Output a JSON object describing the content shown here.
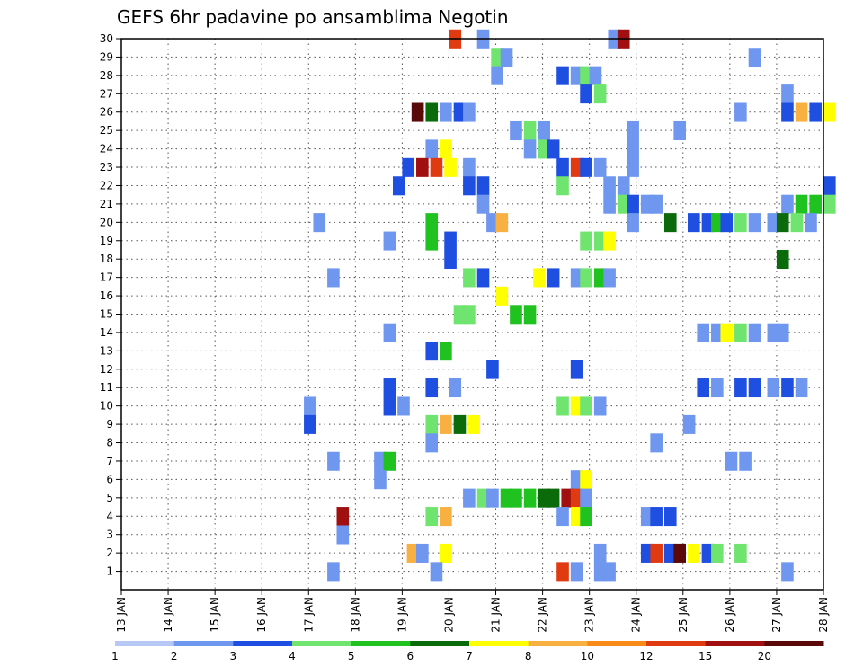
{
  "chart_data": {
    "type": "heatmap",
    "title": "GEFS 6hr padavine po ansamblima Negotin",
    "x_ticks": [
      "13 JAN",
      "14 JAN",
      "15 JAN",
      "16 JAN",
      "17 JAN",
      "18 JAN",
      "19 JAN",
      "20 JAN",
      "21 JAN",
      "22 JAN",
      "23 JAN",
      "24 JAN",
      "25 JAN",
      "26 JAN",
      "27 JAN",
      "28 JAN"
    ],
    "y_ticks": [
      "1",
      "2",
      "3",
      "4",
      "5",
      "6",
      "7",
      "8",
      "9",
      "10",
      "11",
      "12",
      "13",
      "14",
      "15",
      "16",
      "17",
      "18",
      "19",
      "20",
      "21",
      "22",
      "23",
      "24",
      "25",
      "26",
      "27",
      "28",
      "29",
      "30"
    ],
    "xlim": [
      0,
      15.3
    ],
    "ylim": [
      0,
      30
    ],
    "grid": true,
    "colorbar": {
      "labels": [
        "1",
        "2",
        "3",
        "4",
        "5",
        "6",
        "7",
        "8",
        "10",
        "12",
        "15",
        "20"
      ],
      "colors": [
        "#b8c8f4",
        "#6f97ef",
        "#1f4fe0",
        "#6fe46f",
        "#20c220",
        "#0b6b0b",
        "#ffff00",
        "#f8b040",
        "#f88a18",
        "#e03a10",
        "#a01010",
        "#5a0808"
      ]
    },
    "cells": [
      [
        7.0,
        30,
        9
      ],
      [
        7.6,
        30,
        1
      ],
      [
        10.4,
        30,
        1
      ],
      [
        10.6,
        30,
        10
      ],
      [
        7.9,
        29,
        3
      ],
      [
        8.1,
        29,
        1
      ],
      [
        13.4,
        29,
        1
      ],
      [
        7.9,
        28,
        1
      ],
      [
        9.3,
        28,
        2
      ],
      [
        9.6,
        28,
        1
      ],
      [
        9.8,
        28,
        3
      ],
      [
        10.0,
        28,
        1
      ],
      [
        9.8,
        27,
        2
      ],
      [
        10.1,
        27,
        3
      ],
      [
        14.1,
        27,
        1
      ],
      [
        6.2,
        26,
        11
      ],
      [
        6.5,
        26,
        5
      ],
      [
        6.8,
        26,
        1
      ],
      [
        7.1,
        26,
        2
      ],
      [
        7.3,
        26,
        1
      ],
      [
        13.1,
        26,
        1
      ],
      [
        14.1,
        26,
        2
      ],
      [
        14.4,
        26,
        7
      ],
      [
        14.7,
        26,
        2
      ],
      [
        15.0,
        26,
        6
      ],
      [
        8.3,
        25,
        1
      ],
      [
        8.6,
        25,
        3
      ],
      [
        8.9,
        25,
        1
      ],
      [
        10.8,
        25,
        1
      ],
      [
        11.8,
        25,
        1
      ],
      [
        6.5,
        24,
        1
      ],
      [
        6.8,
        24,
        6
      ],
      [
        8.6,
        24,
        1
      ],
      [
        8.9,
        24,
        3
      ],
      [
        9.1,
        24,
        2
      ],
      [
        10.8,
        24,
        1
      ],
      [
        6.0,
        23,
        2
      ],
      [
        6.3,
        23,
        10
      ],
      [
        6.6,
        23,
        9
      ],
      [
        6.9,
        23,
        6
      ],
      [
        7.3,
        23,
        1
      ],
      [
        9.3,
        23,
        2
      ],
      [
        9.6,
        23,
        9
      ],
      [
        9.8,
        23,
        2
      ],
      [
        10.1,
        23,
        1
      ],
      [
        10.8,
        23,
        1
      ],
      [
        5.8,
        22,
        2
      ],
      [
        7.3,
        22,
        2
      ],
      [
        7.6,
        22,
        2
      ],
      [
        9.3,
        22,
        3
      ],
      [
        10.3,
        22,
        1
      ],
      [
        10.6,
        22,
        1
      ],
      [
        15.0,
        22,
        2
      ],
      [
        7.6,
        21,
        1
      ],
      [
        10.3,
        21,
        1
      ],
      [
        10.6,
        21,
        3
      ],
      [
        10.8,
        21,
        2
      ],
      [
        11.1,
        21,
        1
      ],
      [
        11.3,
        21,
        1
      ],
      [
        14.1,
        21,
        1
      ],
      [
        14.4,
        21,
        4
      ],
      [
        14.7,
        21,
        4
      ],
      [
        15.0,
        21,
        3
      ],
      [
        4.1,
        20,
        1
      ],
      [
        6.5,
        20,
        4
      ],
      [
        7.8,
        20,
        1
      ],
      [
        8.0,
        20,
        7
      ],
      [
        10.8,
        20,
        1
      ],
      [
        11.6,
        20,
        5
      ],
      [
        12.1,
        20,
        2
      ],
      [
        12.4,
        20,
        2
      ],
      [
        12.6,
        20,
        4
      ],
      [
        12.8,
        20,
        2
      ],
      [
        13.1,
        20,
        3
      ],
      [
        13.4,
        20,
        1
      ],
      [
        13.8,
        20,
        1
      ],
      [
        14.0,
        20,
        5
      ],
      [
        14.3,
        20,
        3
      ],
      [
        14.6,
        20,
        1
      ],
      [
        5.6,
        19,
        1
      ],
      [
        6.5,
        19,
        4
      ],
      [
        6.9,
        19,
        2
      ],
      [
        9.8,
        19,
        3
      ],
      [
        10.1,
        19,
        3
      ],
      [
        10.3,
        19,
        6
      ],
      [
        6.9,
        18,
        2
      ],
      [
        14.0,
        18,
        5
      ],
      [
        4.4,
        17,
        1
      ],
      [
        7.3,
        17,
        3
      ],
      [
        7.6,
        17,
        2
      ],
      [
        8.8,
        17,
        6
      ],
      [
        9.1,
        17,
        2
      ],
      [
        9.6,
        17,
        1
      ],
      [
        9.8,
        17,
        3
      ],
      [
        10.1,
        17,
        4
      ],
      [
        10.3,
        17,
        1
      ],
      [
        8.0,
        16,
        6
      ],
      [
        7.1,
        15,
        3
      ],
      [
        7.3,
        15,
        3
      ],
      [
        8.3,
        15,
        4
      ],
      [
        8.6,
        15,
        4
      ],
      [
        5.6,
        14,
        1
      ],
      [
        12.3,
        14,
        1
      ],
      [
        12.6,
        14,
        1
      ],
      [
        12.8,
        14,
        6
      ],
      [
        13.1,
        14,
        3
      ],
      [
        13.4,
        14,
        1
      ],
      [
        13.8,
        14,
        1
      ],
      [
        14.0,
        14,
        1
      ],
      [
        6.5,
        13,
        2
      ],
      [
        6.8,
        13,
        4
      ],
      [
        7.8,
        12,
        2
      ],
      [
        9.6,
        12,
        2
      ],
      [
        5.6,
        11,
        2
      ],
      [
        6.5,
        11,
        2
      ],
      [
        7.0,
        11,
        1
      ],
      [
        12.3,
        11,
        2
      ],
      [
        12.6,
        11,
        1
      ],
      [
        13.1,
        11,
        2
      ],
      [
        13.4,
        11,
        2
      ],
      [
        13.8,
        11,
        1
      ],
      [
        14.1,
        11,
        2
      ],
      [
        14.4,
        11,
        1
      ],
      [
        3.9,
        10,
        1
      ],
      [
        5.6,
        10,
        2
      ],
      [
        5.9,
        10,
        1
      ],
      [
        9.3,
        10,
        3
      ],
      [
        9.6,
        10,
        6
      ],
      [
        9.8,
        10,
        3
      ],
      [
        10.1,
        10,
        1
      ],
      [
        3.9,
        9,
        2
      ],
      [
        6.5,
        9,
        3
      ],
      [
        6.8,
        9,
        7
      ],
      [
        7.1,
        9,
        5
      ],
      [
        7.4,
        9,
        6
      ],
      [
        12.0,
        9,
        1
      ],
      [
        6.5,
        8,
        1
      ],
      [
        11.3,
        8,
        1
      ],
      [
        4.4,
        7,
        1
      ],
      [
        5.4,
        7,
        1
      ],
      [
        5.6,
        7,
        4
      ],
      [
        12.9,
        7,
        1
      ],
      [
        13.2,
        7,
        1
      ],
      [
        5.4,
        6,
        1
      ],
      [
        9.6,
        6,
        1
      ],
      [
        9.8,
        6,
        6
      ],
      [
        7.3,
        5,
        1
      ],
      [
        7.6,
        5,
        3
      ],
      [
        7.8,
        5,
        1
      ],
      [
        8.1,
        5,
        4
      ],
      [
        8.3,
        5,
        4
      ],
      [
        8.6,
        5,
        4
      ],
      [
        8.9,
        5,
        5
      ],
      [
        9.1,
        5,
        5
      ],
      [
        9.4,
        5,
        10
      ],
      [
        9.6,
        5,
        9
      ],
      [
        9.8,
        5,
        1
      ],
      [
        4.6,
        4,
        10
      ],
      [
        6.5,
        4,
        3
      ],
      [
        6.8,
        4,
        7
      ],
      [
        9.3,
        4,
        1
      ],
      [
        9.6,
        4,
        6
      ],
      [
        9.8,
        4,
        4
      ],
      [
        11.1,
        4,
        1
      ],
      [
        11.3,
        4,
        2
      ],
      [
        11.6,
        4,
        2
      ],
      [
        4.6,
        3,
        1
      ],
      [
        6.1,
        2,
        7
      ],
      [
        6.3,
        2,
        1
      ],
      [
        6.8,
        2,
        6
      ],
      [
        10.1,
        2,
        1
      ],
      [
        11.1,
        2,
        2
      ],
      [
        11.3,
        2,
        9
      ],
      [
        11.6,
        2,
        2
      ],
      [
        11.8,
        2,
        11
      ],
      [
        12.1,
        2,
        6
      ],
      [
        12.4,
        2,
        2
      ],
      [
        12.6,
        2,
        3
      ],
      [
        13.1,
        2,
        3
      ],
      [
        4.4,
        1,
        1
      ],
      [
        6.6,
        1,
        1
      ],
      [
        9.3,
        1,
        9
      ],
      [
        9.6,
        1,
        1
      ],
      [
        10.1,
        1,
        1
      ],
      [
        10.3,
        1,
        1
      ],
      [
        14.1,
        1,
        1
      ]
    ]
  }
}
